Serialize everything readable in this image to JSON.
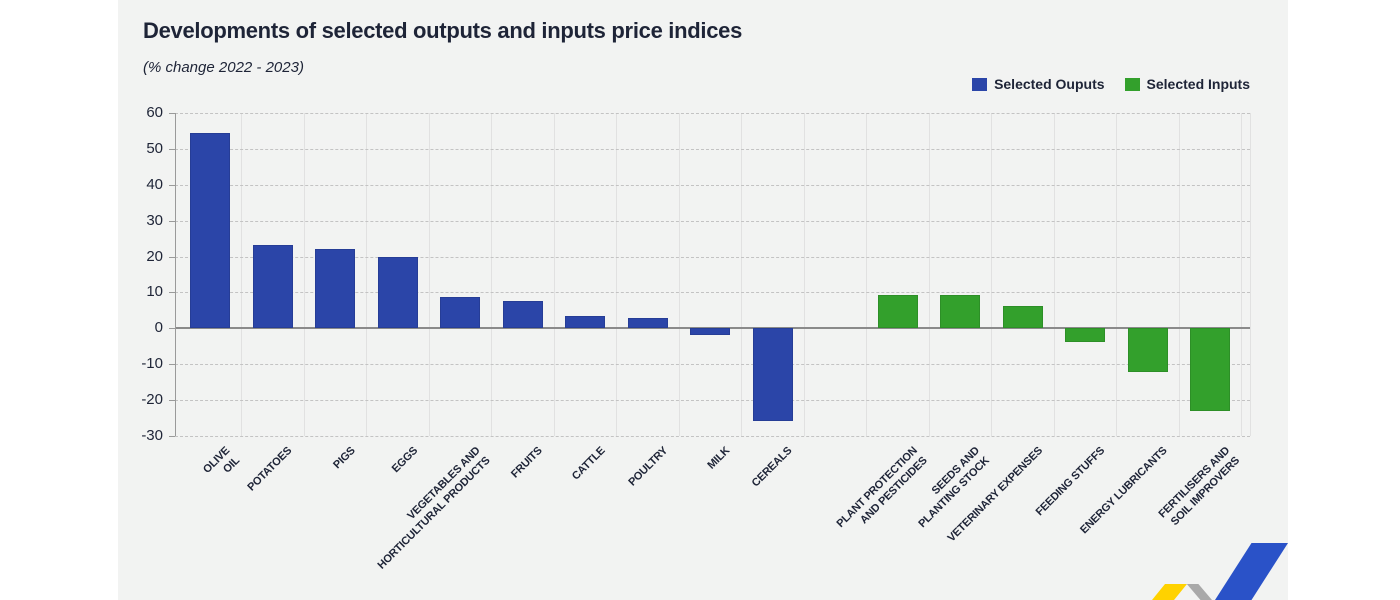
{
  "header": {
    "title": "Developments of selected outputs and inputs price indices",
    "subtitle": "(% change 2022 - 2023)"
  },
  "colors": {
    "outputs_bar": "#2b45a8",
    "inputs_bar": "#33a02c",
    "card_background": "#f2f3f2",
    "text": "#1e2437",
    "zero_line": "#8a8a8a",
    "gridline": "#c3c3c3",
    "decoration_yellow": "#ffd200",
    "decoration_gray": "#a9a9a9",
    "decoration_blue": "#2a52c8"
  },
  "chart_data": {
    "type": "bar",
    "title": "Developments of selected outputs and inputs price indices",
    "subtitle": "(% change 2022 - 2023)",
    "xlabel": "",
    "ylabel": "",
    "ylim": [
      -30,
      60
    ],
    "yticks": [
      60,
      50,
      40,
      30,
      20,
      10,
      0,
      -10,
      -20,
      -30
    ],
    "grid": {
      "horizontal": "dashed",
      "vertical": "light-solid"
    },
    "legend_position": "top-right",
    "series": [
      {
        "name": "Selected Ouputs",
        "color": "#2b45a8",
        "data": [
          {
            "category": "OLIVE OIL",
            "value": 54.3
          },
          {
            "category": "POTATOES",
            "value": 23.2
          },
          {
            "category": "PIGS",
            "value": 22.0
          },
          {
            "category": "EGGS",
            "value": 19.8
          },
          {
            "category": "VEGETABLES AND\nHORTICULTURAL PRODUCTS",
            "value": 8.7
          },
          {
            "category": "FRUITS",
            "value": 7.6
          },
          {
            "category": "CATTLE",
            "value": 3.4
          },
          {
            "category": "POULTRY",
            "value": 2.8
          },
          {
            "category": "MILK",
            "value": -1.9
          },
          {
            "category": "CEREALS",
            "value": -25.8
          }
        ]
      },
      {
        "name": "Selected Inputs",
        "color": "#33a02c",
        "data": [
          {
            "category": "PLANT PROTECTION\nAND PESTICIDES",
            "value": 9.4
          },
          {
            "category": "SEEDS AND\nPLANTING STOCK",
            "value": 9.2
          },
          {
            "category": "VETERINARY EXPENSES",
            "value": 6.1
          },
          {
            "category": "FEEDING STUFFS",
            "value": -3.9
          },
          {
            "category": "ENERGY LUBRICANTS",
            "value": -12.3
          },
          {
            "category": "FERTILISERS AND\nSOIL IMPROVERS",
            "value": -23.0
          }
        ]
      }
    ]
  }
}
